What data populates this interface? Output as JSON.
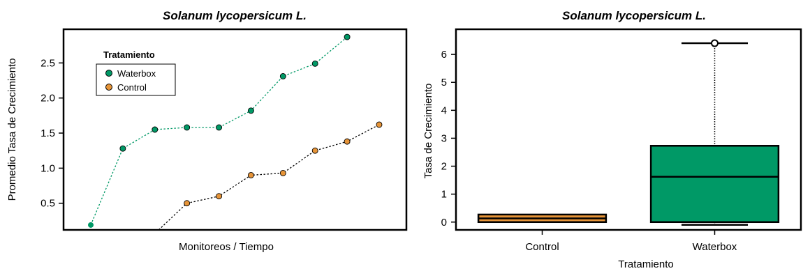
{
  "colors": {
    "waterbox": "#009966",
    "control": "#E69438",
    "frame": "#000000"
  },
  "chart_data": [
    {
      "type": "line",
      "title": "Solanum lycopersicum L.",
      "xlabel": "Monitoreos / Tiempo",
      "ylabel": "Promedio Tasa de Crecimiento",
      "yticks": [
        "0.5",
        "1.0",
        "1.5",
        "2.0",
        "2.5"
      ],
      "ytick_values": [
        0.5,
        1.0,
        1.5,
        2.0,
        2.5
      ],
      "ylim": [
        0.12,
        2.98
      ],
      "xlim": [
        0.15,
        10.85
      ],
      "legend_title": "Tratamiento",
      "legend_position": "top-left",
      "grid": false,
      "series": [
        {
          "name": "Waterbox",
          "color": "#009966",
          "x": [
            1,
            2,
            3,
            4,
            5,
            6,
            7,
            8,
            9
          ],
          "y": [
            0.19,
            1.28,
            1.55,
            1.58,
            1.58,
            1.82,
            2.31,
            2.49,
            2.87
          ]
        },
        {
          "name": "Control",
          "color": "#E69438",
          "x": [
            4,
            5,
            6,
            7,
            8,
            9,
            10
          ],
          "y": [
            0.5,
            0.6,
            0.9,
            0.93,
            1.25,
            1.38,
            1.62
          ],
          "lead_in_y": [
            0.12,
            0.5
          ]
        }
      ]
    },
    {
      "type": "boxplot",
      "title": "Solanum lycopersicum L.",
      "xlabel": "Tratamiento",
      "ylabel": "Tasa de Crecimiento",
      "categories": [
        "Control",
        "Waterbox"
      ],
      "yticks": [
        "0",
        "1",
        "2",
        "3",
        "4",
        "5",
        "6"
      ],
      "ytick_values": [
        0,
        1,
        2,
        3,
        4,
        5,
        6
      ],
      "ylim": [
        -0.28,
        6.9
      ],
      "grid": false,
      "boxes": [
        {
          "name": "Control",
          "color": "#E69438",
          "min": 0.0,
          "q1": 0.0,
          "median": 0.13,
          "q3": 0.27,
          "max": 0.27,
          "outliers": []
        },
        {
          "name": "Waterbox",
          "color": "#009966",
          "min": -0.1,
          "q1": 0.0,
          "median": 1.62,
          "q3": 2.73,
          "max": 6.4,
          "outliers": [
            6.4
          ]
        }
      ]
    }
  ]
}
